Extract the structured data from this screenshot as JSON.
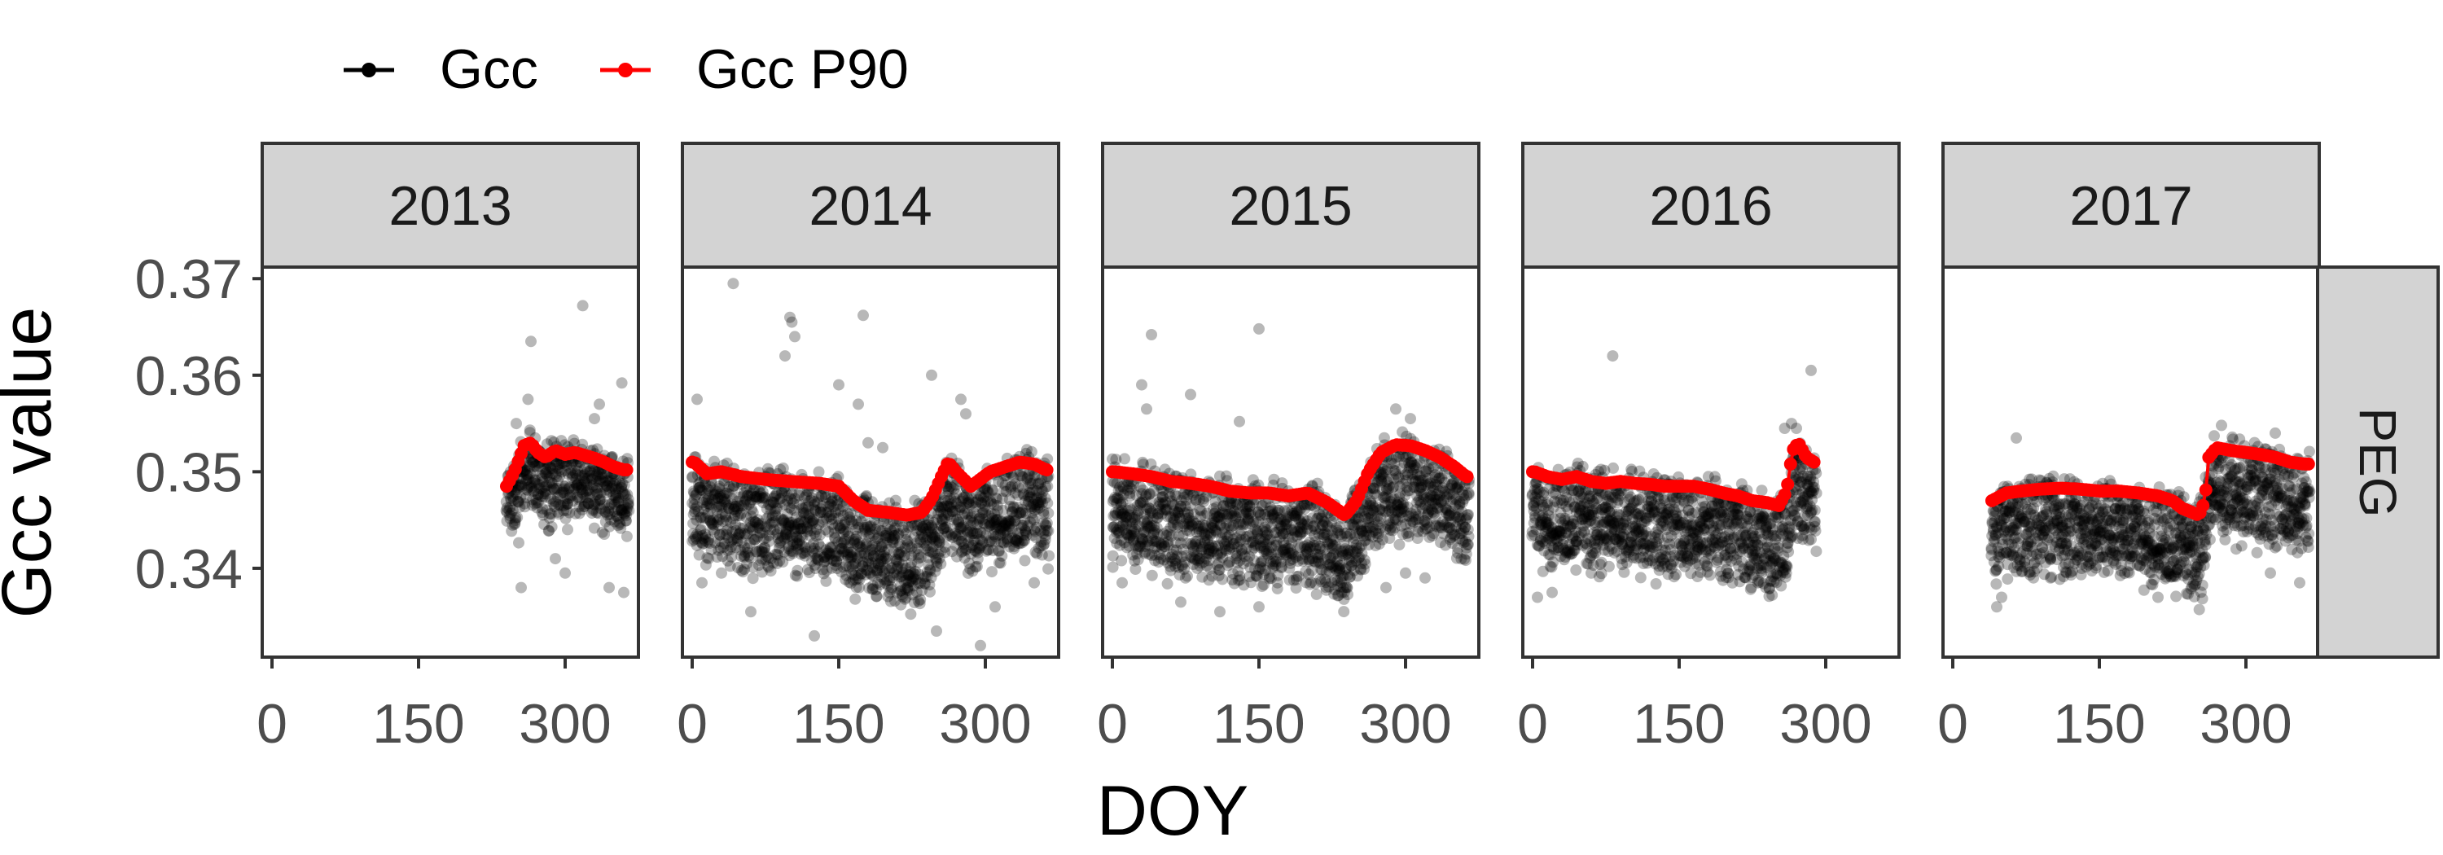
{
  "chart_data": {
    "type": "scatter",
    "title": "",
    "xlabel": "DOY",
    "ylabel": "Gcc value",
    "xlim": [
      -10,
      375
    ],
    "ylim": [
      0.3308,
      0.3712
    ],
    "x_ticks": [
      0,
      150,
      300
    ],
    "x_tick_labels": [
      "0",
      "150",
      "300"
    ],
    "y_ticks": [
      0.34,
      0.35,
      0.36,
      0.37
    ],
    "y_tick_labels": [
      "0.34",
      "0.35",
      "0.36",
      "0.37"
    ],
    "grid": false,
    "legend": {
      "placement": "top-left",
      "entries": [
        {
          "label": "Gcc",
          "color": "#000000"
        },
        {
          "label": "Gcc P90",
          "color": "#ff0000"
        }
      ]
    },
    "row_strip": "PEG",
    "strip_color": "#d3d3d3",
    "panels": [
      {
        "strip": "2013",
        "doy_start": 240,
        "doy_end": 365,
        "p90": [
          [
            240,
            0.3485
          ],
          [
            248,
            0.35
          ],
          [
            258,
            0.3527
          ],
          [
            265,
            0.353
          ],
          [
            272,
            0.352
          ],
          [
            280,
            0.3515
          ],
          [
            290,
            0.3522
          ],
          [
            300,
            0.3518
          ],
          [
            310,
            0.352
          ],
          [
            320,
            0.3517
          ],
          [
            330,
            0.3514
          ],
          [
            340,
            0.351
          ],
          [
            350,
            0.3505
          ],
          [
            360,
            0.3502
          ]
        ],
        "cloud_offset_low": 0.0055,
        "cloud_offset_high": 0.0015,
        "outliers": [
          [
            265,
            0.3635
          ],
          [
            318,
            0.3672
          ],
          [
            358,
            0.3592
          ],
          [
            262,
            0.3575
          ],
          [
            335,
            0.357
          ],
          [
            290,
            0.341
          ],
          [
            345,
            0.338
          ],
          [
            255,
            0.338
          ],
          [
            300,
            0.3395
          ],
          [
            360,
            0.3375
          ],
          [
            250,
            0.355
          ],
          [
            330,
            0.3555
          ]
        ]
      },
      {
        "strip": "2014",
        "doy_start": 0,
        "doy_end": 365,
        "p90": [
          [
            2,
            0.351
          ],
          [
            15,
            0.3498
          ],
          [
            30,
            0.35
          ],
          [
            50,
            0.3495
          ],
          [
            75,
            0.3492
          ],
          [
            100,
            0.349
          ],
          [
            130,
            0.3488
          ],
          [
            150,
            0.3485
          ],
          [
            165,
            0.347
          ],
          [
            180,
            0.346
          ],
          [
            200,
            0.3458
          ],
          [
            220,
            0.3455
          ],
          [
            235,
            0.3458
          ],
          [
            245,
            0.3472
          ],
          [
            255,
            0.3495
          ],
          [
            262,
            0.351
          ],
          [
            270,
            0.35
          ],
          [
            285,
            0.3485
          ],
          [
            292,
            0.349
          ],
          [
            305,
            0.35
          ],
          [
            320,
            0.3505
          ],
          [
            335,
            0.351
          ],
          [
            350,
            0.3508
          ],
          [
            362,
            0.3502
          ]
        ],
        "cloud_offset_low": 0.0085,
        "cloud_offset_high": 0.0015,
        "outliers": [
          [
            42,
            0.3695
          ],
          [
            100,
            0.366
          ],
          [
            102,
            0.3655
          ],
          [
            105,
            0.364
          ],
          [
            95,
            0.362
          ],
          [
            175,
            0.3662
          ],
          [
            5,
            0.3575
          ],
          [
            245,
            0.36
          ],
          [
            275,
            0.3575
          ],
          [
            280,
            0.356
          ],
          [
            170,
            0.357
          ],
          [
            150,
            0.359
          ],
          [
            30,
            0.3395
          ],
          [
            60,
            0.3355
          ],
          [
            125,
            0.333
          ],
          [
            295,
            0.332
          ],
          [
            250,
            0.3335
          ],
          [
            310,
            0.336
          ],
          [
            10,
            0.3385
          ],
          [
            190,
            0.3385
          ],
          [
            220,
            0.338
          ],
          [
            350,
            0.3385
          ],
          [
            180,
            0.353
          ],
          [
            195,
            0.3525
          ]
        ]
      },
      {
        "strip": "2015",
        "doy_start": 0,
        "doy_end": 365,
        "p90": [
          [
            2,
            0.35
          ],
          [
            20,
            0.3498
          ],
          [
            40,
            0.3495
          ],
          [
            60,
            0.349
          ],
          [
            80,
            0.3488
          ],
          [
            100,
            0.3485
          ],
          [
            120,
            0.348
          ],
          [
            140,
            0.3478
          ],
          [
            160,
            0.3478
          ],
          [
            180,
            0.3475
          ],
          [
            200,
            0.3478
          ],
          [
            220,
            0.3468
          ],
          [
            238,
            0.3455
          ],
          [
            250,
            0.347
          ],
          [
            262,
            0.35
          ],
          [
            275,
            0.352
          ],
          [
            290,
            0.3528
          ],
          [
            305,
            0.3527
          ],
          [
            320,
            0.3522
          ],
          [
            335,
            0.3515
          ],
          [
            350,
            0.3505
          ],
          [
            362,
            0.3495
          ]
        ],
        "cloud_offset_low": 0.0085,
        "cloud_offset_high": 0.0015,
        "outliers": [
          [
            40,
            0.3642
          ],
          [
            150,
            0.3648
          ],
          [
            30,
            0.359
          ],
          [
            35,
            0.3565
          ],
          [
            80,
            0.358
          ],
          [
            130,
            0.3552
          ],
          [
            70,
            0.3365
          ],
          [
            110,
            0.3355
          ],
          [
            150,
            0.336
          ],
          [
            10,
            0.3385
          ],
          [
            230,
            0.3382
          ],
          [
            300,
            0.3395
          ],
          [
            280,
            0.338
          ],
          [
            320,
            0.339
          ],
          [
            290,
            0.3565
          ],
          [
            305,
            0.3555
          ]
        ]
      },
      {
        "strip": "2016",
        "doy_start": 0,
        "doy_end": 290,
        "p90": [
          [
            2,
            0.35
          ],
          [
            15,
            0.3495
          ],
          [
            30,
            0.3492
          ],
          [
            45,
            0.3495
          ],
          [
            60,
            0.349
          ],
          [
            75,
            0.3488
          ],
          [
            90,
            0.349
          ],
          [
            105,
            0.3488
          ],
          [
            120,
            0.3487
          ],
          [
            135,
            0.3485
          ],
          [
            150,
            0.3485
          ],
          [
            165,
            0.3485
          ],
          [
            180,
            0.3482
          ],
          [
            195,
            0.3478
          ],
          [
            210,
            0.3475
          ],
          [
            225,
            0.347
          ],
          [
            240,
            0.3468
          ],
          [
            252,
            0.3465
          ],
          [
            260,
            0.348
          ],
          [
            266,
            0.3522
          ],
          [
            272,
            0.353
          ],
          [
            280,
            0.3515
          ],
          [
            288,
            0.351
          ]
        ],
        "cloud_offset_low": 0.008,
        "cloud_offset_high": 0.0015,
        "outliers": [
          [
            82,
            0.362
          ],
          [
            285,
            0.3605
          ],
          [
            5,
            0.337
          ],
          [
            20,
            0.3375
          ],
          [
            60,
            0.3395
          ],
          [
            200,
            0.3395
          ],
          [
            230,
            0.34
          ],
          [
            258,
            0.3545
          ],
          [
            270,
            0.3545
          ],
          [
            265,
            0.355
          ],
          [
            285,
            0.343
          ],
          [
            278,
            0.344
          ]
        ]
      },
      {
        "strip": "2017",
        "doy_start": 40,
        "doy_end": 365,
        "p90": [
          [
            40,
            0.347
          ],
          [
            55,
            0.3478
          ],
          [
            70,
            0.348
          ],
          [
            90,
            0.3482
          ],
          [
            110,
            0.3483
          ],
          [
            130,
            0.3482
          ],
          [
            150,
            0.348
          ],
          [
            170,
            0.348
          ],
          [
            190,
            0.3478
          ],
          [
            210,
            0.3475
          ],
          [
            225,
            0.347
          ],
          [
            235,
            0.3462
          ],
          [
            245,
            0.3458
          ],
          [
            252,
            0.3455
          ],
          [
            258,
            0.347
          ],
          [
            262,
            0.3515
          ],
          [
            270,
            0.3525
          ],
          [
            285,
            0.3522
          ],
          [
            300,
            0.352
          ],
          [
            315,
            0.3518
          ],
          [
            330,
            0.3515
          ],
          [
            345,
            0.351
          ],
          [
            360,
            0.3508
          ]
        ],
        "cloud_offset_low": 0.008,
        "cloud_offset_high": 0.0015,
        "outliers": [
          [
            65,
            0.3535
          ],
          [
            45,
            0.336
          ],
          [
            50,
            0.337
          ],
          [
            210,
            0.337
          ],
          [
            355,
            0.3385
          ],
          [
            100,
            0.339
          ],
          [
            250,
            0.344
          ],
          [
            325,
            0.3395
          ],
          [
            290,
            0.342
          ],
          [
            275,
            0.3548
          ],
          [
            330,
            0.354
          ]
        ]
      }
    ]
  }
}
